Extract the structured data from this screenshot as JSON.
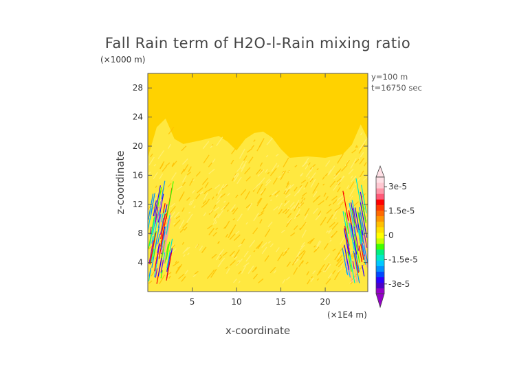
{
  "chart_data": {
    "type": "heatmap",
    "title": "Fall Rain term of H2O-l-Rain mixing ratio",
    "xlabel": "x-coordinate",
    "ylabel": "z-coordinate",
    "x_unit": "(×1E4 m)",
    "y_unit": "(×1000 m)",
    "xlim": [
      0,
      24.8
    ],
    "ylim": [
      0,
      30
    ],
    "x_ticks": [
      5,
      10,
      15,
      20
    ],
    "y_ticks": [
      4,
      8,
      12,
      16,
      20,
      24,
      28
    ],
    "annotations": [
      "y=100 m",
      "t=16750 sec"
    ],
    "colorbar": {
      "labels": [
        "3e-5",
        "1.5e-5",
        "0",
        "-1.5e-5",
        "-3e-5"
      ],
      "label_values": [
        3e-05,
        1.5e-05,
        0,
        -1.5e-05,
        -3e-05
      ],
      "range": [
        -3.6e-05,
        3.6e-05
      ],
      "colors": [
        "#9400c8",
        "#4b00c8",
        "#2b00ff",
        "#0048ff",
        "#0090ff",
        "#00c8ff",
        "#00e8c8",
        "#00f080",
        "#40ff00",
        "#c8ff00",
        "#ffff00",
        "#ffe000",
        "#ffc000",
        "#ff9600",
        "#ff6a00",
        "#ff3a00",
        "#ff0000",
        "#ff5a78",
        "#ff96a8",
        "#ffc8d2",
        "#ffe0e6"
      ]
    },
    "background_color": "#ffd200",
    "rain_region_color": "#ffe840",
    "rain_top_profile": [
      [
        0,
        18.4
      ],
      [
        1,
        22.6
      ],
      [
        2,
        23.8
      ],
      [
        3,
        21.0
      ],
      [
        4,
        20.3
      ],
      [
        6,
        20.8
      ],
      [
        8,
        21.4
      ],
      [
        9,
        20.6
      ],
      [
        10,
        19.4
      ],
      [
        11,
        21.0
      ],
      [
        12,
        21.8
      ],
      [
        13,
        22.0
      ],
      [
        14,
        21.2
      ],
      [
        15,
        19.6
      ],
      [
        16,
        18.4
      ],
      [
        18,
        18.6
      ],
      [
        20,
        18.4
      ],
      [
        22,
        18.9
      ],
      [
        23,
        20.2
      ],
      [
        24,
        23.0
      ],
      [
        24.8,
        21.0
      ]
    ]
  }
}
